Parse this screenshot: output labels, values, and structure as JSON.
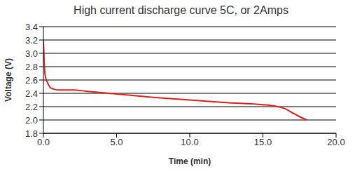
{
  "chart_data": {
    "type": "line",
    "title": "High current discharge curve 5C, or 2Amps",
    "x_label": "Time (min)",
    "y_label": "Voltage (V)",
    "x": [
      0,
      0.05,
      0.1,
      0.2,
      0.3,
      0.5,
      1,
      2,
      3,
      5,
      7.5,
      10,
      12.5,
      15,
      16,
      16.5,
      17,
      17.5,
      18
    ],
    "values": [
      3.2,
      2.9,
      2.7,
      2.6,
      2.55,
      2.48,
      2.45,
      2.45,
      2.43,
      2.39,
      2.34,
      2.3,
      2.26,
      2.23,
      2.2,
      2.17,
      2.11,
      2.05,
      2.0
    ],
    "color": "#e0201b",
    "xlim": [
      0,
      20
    ],
    "xticks": [
      {
        "value": 0,
        "label": "0.0"
      },
      {
        "value": 5,
        "label": "5.0"
      },
      {
        "value": 10,
        "label": "10.0"
      },
      {
        "value": 15,
        "label": "15.0"
      },
      {
        "value": 20,
        "label": "20.0"
      }
    ],
    "ylim": [
      1.8,
      3.4
    ],
    "yticks": [
      1.8,
      {
        "value": 2,
        "label": "2.0"
      },
      2.2,
      2.4,
      2.6,
      2.8,
      {
        "value": 3,
        "label": "3.0"
      },
      3.2,
      3.4
    ],
    "grid": true
  }
}
